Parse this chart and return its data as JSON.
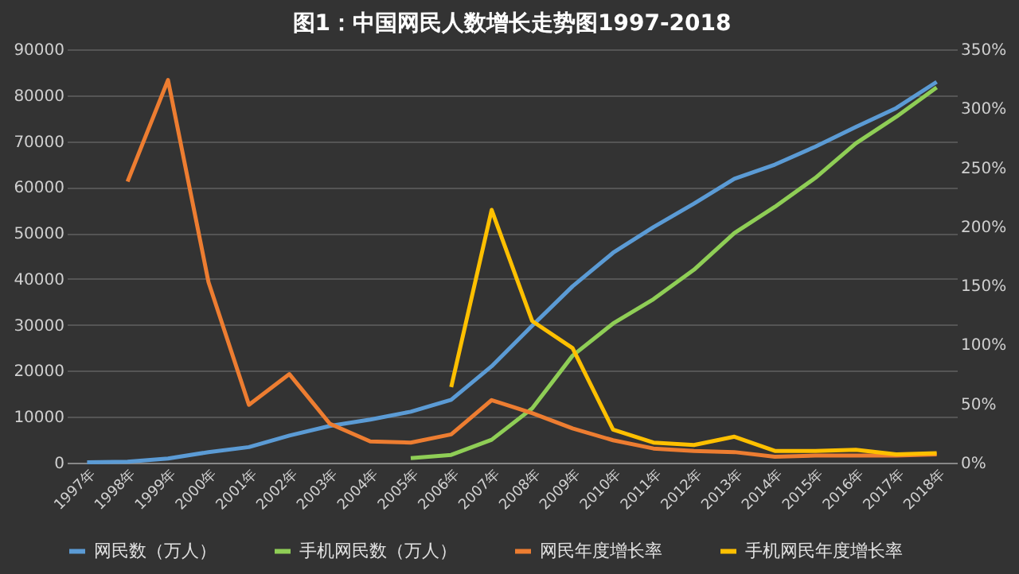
{
  "chart_data": {
    "type": "line",
    "title": "图1：中国网民人数增长走势图1997-2018",
    "categories": [
      "1997年",
      "1998年",
      "1999年",
      "2000年",
      "2001年",
      "2002年",
      "2003年",
      "2004年",
      "2005年",
      "2006年",
      "2007年",
      "2008年",
      "2009年",
      "2010年",
      "2011年",
      "2012年",
      "2013年",
      "2014年",
      "2015年",
      "2016年",
      "2017年",
      "2018年"
    ],
    "series": [
      {
        "name": "网民数（万人）",
        "color": "#5b9bd5",
        "values": [
          100,
          200,
          900,
          2300,
          3400,
          5900,
          8000,
          9400,
          11100,
          13700,
          21000,
          29800,
          38400,
          45700,
          51300,
          56400,
          61800,
          64900,
          68800,
          73100,
          77200,
          82900
        ]
      },
      {
        "name": "手机网民数（万人）",
        "color": "#8fce56",
        "values": [
          null,
          null,
          null,
          null,
          null,
          null,
          null,
          null,
          1000,
          1700,
          5000,
          11800,
          23300,
          30300,
          35600,
          42000,
          50000,
          55700,
          62000,
          69500,
          75300,
          81700
        ]
      },
      {
        "name": "网民年度增长率",
        "color": "#ed7d31",
        "axis": "y2",
        "values": [
          null,
          238,
          324,
          153,
          49,
          75,
          33,
          18,
          17,
          24,
          53,
          42,
          29,
          19,
          12,
          10,
          9,
          5,
          6,
          6,
          6,
          7
        ]
      },
      {
        "name": "手机网民年度增长率",
        "color": "#ffc000",
        "axis": "y2",
        "values": [
          null,
          null,
          null,
          null,
          null,
          null,
          null,
          null,
          null,
          64,
          214,
          120,
          97,
          28,
          17,
          15,
          22,
          10,
          10,
          11,
          7,
          8
        ]
      }
    ],
    "ylim": [
      0,
      90000
    ],
    "yticks": [
      0,
      10000,
      20000,
      30000,
      40000,
      50000,
      60000,
      70000,
      80000,
      90000
    ],
    "y2lim": [
      0,
      350
    ],
    "y2ticks": [
      {
        "value": 0,
        "label": "0%"
      },
      {
        "value": 50,
        "label": "50%"
      },
      {
        "value": 100,
        "label": "100%"
      },
      {
        "value": 150,
        "label": "150%"
      },
      {
        "value": 200,
        "label": "200%"
      },
      {
        "value": 250,
        "label": "250%"
      },
      {
        "value": 300,
        "label": "300%"
      },
      {
        "value": 350,
        "label": "350%"
      }
    ],
    "grid": "y",
    "legend": "bottom",
    "marker": "none",
    "line_style": "solid"
  }
}
